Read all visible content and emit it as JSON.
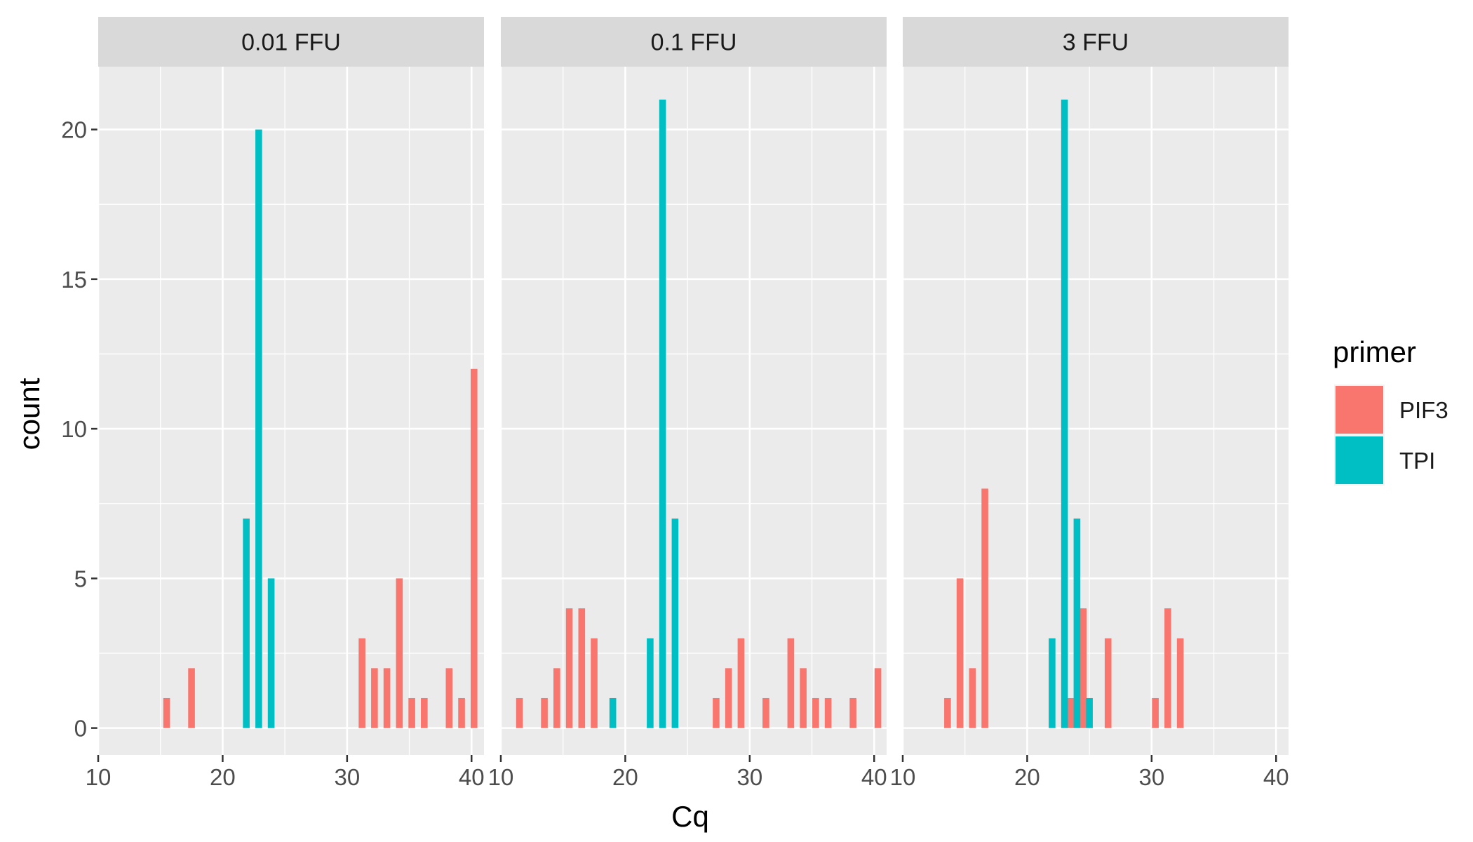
{
  "chart_data": {
    "type": "bar",
    "xlabel": "Cq",
    "ylabel": "count",
    "xlim": [
      10,
      41
    ],
    "ylim": [
      -0.9,
      22.1
    ],
    "x_ticks": [
      10,
      20,
      30,
      40
    ],
    "y_ticks": [
      0,
      5,
      10,
      15,
      20
    ],
    "grid": true,
    "legend": {
      "title": "primer",
      "position": "right",
      "entries": [
        {
          "key": "PIF3",
          "label": "PIF3",
          "color": "#F8766D"
        },
        {
          "key": "TPI",
          "label": "TPI",
          "color": "#00BFC4"
        }
      ]
    },
    "panels": [
      {
        "label": "0.01 FFU",
        "series": [
          {
            "name": "PIF3",
            "points": [
              [
                15.5,
                1
              ],
              [
                17.5,
                2
              ],
              [
                31.2,
                3
              ],
              [
                32.2,
                2
              ],
              [
                33.2,
                2
              ],
              [
                34.2,
                5
              ],
              [
                35.2,
                1
              ],
              [
                36.2,
                1
              ],
              [
                38.2,
                2
              ],
              [
                39.2,
                1
              ],
              [
                40.2,
                12
              ]
            ]
          },
          {
            "name": "TPI",
            "points": [
              [
                21.9,
                7
              ],
              [
                22.9,
                20
              ],
              [
                23.9,
                5
              ]
            ]
          }
        ]
      },
      {
        "label": "0.1 FFU",
        "series": [
          {
            "name": "PIF3",
            "points": [
              [
                11.5,
                1
              ],
              [
                13.5,
                1
              ],
              [
                14.5,
                2
              ],
              [
                15.5,
                4
              ],
              [
                16.5,
                4
              ],
              [
                17.5,
                3
              ],
              [
                27.3,
                1
              ],
              [
                28.3,
                2
              ],
              [
                29.3,
                3
              ],
              [
                31.3,
                1
              ],
              [
                33.3,
                3
              ],
              [
                34.3,
                2
              ],
              [
                35.3,
                1
              ],
              [
                36.3,
                1
              ],
              [
                38.3,
                1
              ],
              [
                40.3,
                2
              ]
            ]
          },
          {
            "name": "TPI",
            "points": [
              [
                19.0,
                1
              ],
              [
                22.0,
                3
              ],
              [
                23.0,
                21
              ],
              [
                24.0,
                7
              ]
            ]
          }
        ]
      },
      {
        "label": "3 FFU",
        "series": [
          {
            "name": "PIF3",
            "points": [
              [
                13.6,
                1
              ],
              [
                14.6,
                5
              ],
              [
                15.6,
                2
              ],
              [
                16.6,
                8
              ],
              [
                23.5,
                1
              ],
              [
                24.5,
                4
              ],
              [
                26.5,
                3
              ],
              [
                30.3,
                1
              ],
              [
                31.3,
                4
              ],
              [
                32.3,
                3
              ]
            ]
          },
          {
            "name": "TPI",
            "points": [
              [
                22.0,
                3
              ],
              [
                23.0,
                21
              ],
              [
                24.0,
                7
              ],
              [
                25.0,
                1
              ]
            ]
          }
        ]
      }
    ]
  }
}
